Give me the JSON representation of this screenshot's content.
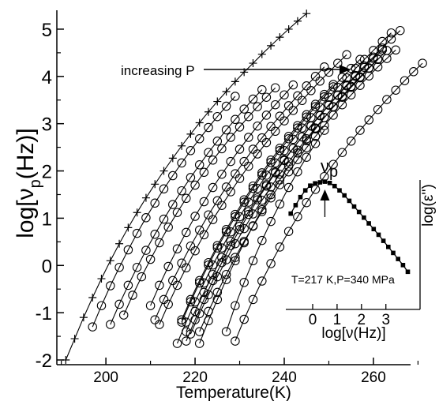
{
  "chart_data": {
    "type": "scatter",
    "title": "",
    "xlabel": "Temperature(K)",
    "ylabel": "log[ν",
    "ylabel_sub": "p",
    "ylabel_end": "(Hz)]",
    "xlim": [
      189,
      274
    ],
    "ylim": [
      -2.1,
      5.4
    ],
    "xticks": [
      "200",
      "220",
      "240",
      "260"
    ],
    "xtick_values": [
      200,
      220,
      240,
      260
    ],
    "yticks": [
      "-2",
      "-1",
      "0",
      "1",
      "2",
      "3",
      "4",
      "5"
    ],
    "ytick_values": [
      -2,
      -1,
      0,
      1,
      2,
      3,
      4,
      5
    ],
    "annotation": "increasing P",
    "grid": false,
    "series": [
      {
        "marker": "plus",
        "x": [
          191,
          193,
          195,
          197,
          199,
          201,
          203,
          205,
          207,
          209,
          211,
          213,
          215,
          217,
          219,
          221,
          223,
          225,
          227,
          229,
          231,
          233,
          235,
          237,
          239,
          241,
          243,
          245
        ],
        "y": [
          -2.0,
          -1.55,
          -1.1,
          -0.68,
          -0.28,
          0.1,
          0.46,
          0.8,
          1.12,
          1.43,
          1.72,
          2.0,
          2.27,
          2.53,
          2.78,
          3.02,
          3.25,
          3.47,
          3.68,
          3.89,
          4.09,
          4.28,
          4.47,
          4.65,
          4.83,
          5.0,
          5.17,
          5.33
        ]
      },
      {
        "marker": "circle",
        "x": [
          197,
          199,
          201,
          203,
          205,
          207,
          209,
          211,
          213,
          215,
          217,
          219,
          221,
          223,
          225,
          227,
          229
        ],
        "y": [
          -1.3,
          -0.85,
          -0.43,
          -0.04,
          0.33,
          0.68,
          1.01,
          1.32,
          1.62,
          1.9,
          2.17,
          2.43,
          2.68,
          2.92,
          3.15,
          3.37,
          3.58
        ]
      },
      {
        "marker": "circle",
        "x": [
          201,
          203,
          205,
          207,
          209,
          211,
          213,
          215,
          217,
          219,
          221,
          223,
          225,
          227,
          229,
          231,
          233,
          235
        ],
        "y": [
          -1.25,
          -0.82,
          -0.42,
          -0.04,
          0.32,
          0.66,
          0.98,
          1.29,
          1.58,
          1.86,
          2.13,
          2.39,
          2.63,
          2.87,
          3.09,
          3.31,
          3.52,
          3.72
        ]
      },
      {
        "marker": "circle",
        "x": [
          204,
          206,
          208,
          210,
          212,
          214,
          216,
          218,
          220,
          222,
          224,
          226,
          228,
          230,
          232,
          234,
          236,
          238
        ],
        "y": [
          -1.05,
          -0.63,
          -0.24,
          0.13,
          0.48,
          0.81,
          1.12,
          1.42,
          1.7,
          1.97,
          2.23,
          2.47,
          2.71,
          2.93,
          3.15,
          3.36,
          3.56,
          3.76
        ]
      },
      {
        "marker": "circle",
        "x": [
          210,
          212,
          214,
          216,
          218,
          220,
          222,
          224,
          226,
          228,
          230,
          232,
          234,
          236,
          238,
          240,
          242
        ],
        "y": [
          -0.85,
          -0.42,
          -0.02,
          0.35,
          0.7,
          1.04,
          1.35,
          1.65,
          1.93,
          2.2,
          2.46,
          2.71,
          2.95,
          3.18,
          3.4,
          3.61,
          3.82
        ]
      },
      {
        "marker": "circle",
        "x": [
          211,
          213,
          215,
          217,
          219,
          221,
          223,
          225,
          227,
          229,
          231,
          233,
          235,
          237,
          239,
          241,
          243,
          245,
          247,
          249
        ],
        "y": [
          -1.15,
          -0.72,
          -0.32,
          0.05,
          0.41,
          0.75,
          1.07,
          1.37,
          1.66,
          1.94,
          2.2,
          2.46,
          2.7,
          2.94,
          3.16,
          3.38,
          3.59,
          3.8,
          4.0,
          4.2
        ]
      },
      {
        "marker": "circle",
        "x": [
          212,
          214,
          216,
          218,
          220,
          222,
          224,
          226,
          228,
          230,
          232,
          234,
          236,
          238,
          240,
          242,
          244,
          246,
          248,
          250,
          252,
          254
        ],
        "y": [
          -1.25,
          -0.82,
          -0.42,
          -0.05,
          0.31,
          0.65,
          0.97,
          1.27,
          1.56,
          1.84,
          2.1,
          2.36,
          2.6,
          2.84,
          3.06,
          3.28,
          3.49,
          3.7,
          3.9,
          4.09,
          4.28,
          4.46
        ]
      },
      {
        "marker": "circle",
        "x": [
          217,
          219,
          221,
          223,
          225,
          227,
          229,
          231,
          233,
          235,
          237,
          239,
          241,
          243,
          245,
          247,
          249,
          251
        ],
        "y": [
          -1.15,
          -0.72,
          -0.32,
          0.06,
          0.42,
          0.76,
          1.08,
          1.39,
          1.68,
          1.96,
          2.23,
          2.48,
          2.73,
          2.96,
          3.19,
          3.41,
          3.62,
          3.83
        ]
      },
      {
        "marker": "circle",
        "x": [
          217,
          219,
          221,
          223,
          225,
          227,
          229,
          231,
          233,
          235,
          237,
          239,
          241,
          243,
          245,
          247,
          249,
          251,
          253,
          255,
          257
        ],
        "y": [
          -1.2,
          -0.77,
          -0.37,
          0.01,
          0.37,
          0.71,
          1.03,
          1.34,
          1.63,
          1.91,
          2.18,
          2.43,
          2.68,
          2.91,
          3.14,
          3.36,
          3.57,
          3.78,
          3.98,
          4.17,
          4.36
        ]
      },
      {
        "marker": "circle",
        "x": [
          218,
          220,
          222,
          224,
          226,
          228,
          230,
          232,
          234,
          236,
          238,
          240,
          242,
          244,
          246,
          248,
          250,
          252,
          254,
          256,
          258,
          260,
          262
        ],
        "y": [
          -1.4,
          -0.97,
          -0.57,
          -0.19,
          0.17,
          0.51,
          0.83,
          1.14,
          1.43,
          1.71,
          1.98,
          2.24,
          2.48,
          2.72,
          2.95,
          3.17,
          3.39,
          3.6,
          3.8,
          4.0,
          4.19,
          4.38,
          4.56
        ]
      },
      {
        "marker": "circle",
        "x": [
          219,
          221,
          223,
          225,
          227,
          229,
          231,
          233,
          235,
          237,
          239,
          241,
          243,
          245,
          247,
          249,
          251,
          253,
          255,
          257,
          259,
          261,
          263
        ],
        "y": [
          -1.45,
          -1.02,
          -0.62,
          -0.24,
          0.12,
          0.46,
          0.78,
          1.09,
          1.38,
          1.66,
          1.93,
          2.19,
          2.44,
          2.68,
          2.91,
          3.13,
          3.35,
          3.56,
          3.77,
          3.97,
          4.17,
          4.36,
          4.55
        ]
      },
      {
        "marker": "circle",
        "x": [
          221,
          223,
          225,
          227,
          229,
          231,
          233,
          235,
          237,
          239,
          241,
          243,
          245,
          247,
          249,
          251,
          253,
          255,
          257,
          259,
          261,
          263,
          265
        ],
        "y": [
          -1.4,
          -0.97,
          -0.57,
          -0.19,
          0.17,
          0.51,
          0.83,
          1.14,
          1.43,
          1.71,
          1.98,
          2.24,
          2.49,
          2.73,
          2.96,
          3.18,
          3.4,
          3.61,
          3.81,
          4.01,
          4.2,
          4.38,
          4.56
        ]
      },
      {
        "marker": "circle",
        "x": [
          216,
          218,
          220,
          222,
          224,
          226,
          228,
          230,
          232,
          234,
          236,
          238,
          240,
          242,
          244,
          246,
          248,
          250,
          252,
          254,
          256,
          258,
          260,
          262,
          264
        ],
        "y": [
          -1.65,
          -1.2,
          -0.77,
          -0.37,
          0.01,
          0.37,
          0.71,
          1.03,
          1.34,
          1.63,
          1.91,
          2.17,
          2.43,
          2.67,
          2.91,
          3.13,
          3.35,
          3.56,
          3.77,
          3.97,
          4.17,
          4.36,
          4.55,
          4.74,
          4.92
        ]
      },
      {
        "marker": "circle",
        "x": [
          218,
          220,
          222,
          224,
          226,
          228,
          230,
          232,
          234,
          236,
          238,
          240,
          242,
          244,
          246,
          248,
          250,
          252,
          254,
          256,
          258,
          260,
          262,
          264,
          266
        ],
        "y": [
          -1.6,
          -1.15,
          -0.72,
          -0.32,
          0.06,
          0.42,
          0.76,
          1.08,
          1.39,
          1.68,
          1.96,
          2.22,
          2.48,
          2.72,
          2.96,
          3.18,
          3.4,
          3.61,
          3.82,
          4.02,
          4.22,
          4.41,
          4.6,
          4.79,
          4.97
        ]
      },
      {
        "marker": "circle",
        "x": [
          221,
          223,
          225,
          227,
          229,
          231,
          233,
          235,
          237,
          239,
          241,
          243,
          245,
          247,
          249,
          251,
          253,
          255,
          257,
          259,
          261
        ],
        "y": [
          -1.65,
          -1.17,
          -0.72,
          -0.3,
          0.1,
          0.48,
          0.84,
          1.18,
          1.5,
          1.81,
          2.1,
          2.38,
          2.64,
          2.89,
          3.13,
          3.36,
          3.58,
          3.79,
          3.99,
          4.18,
          4.37
        ]
      },
      {
        "marker": "circle",
        "x": [
          227,
          229,
          231,
          233,
          235,
          237,
          239,
          241,
          243,
          245,
          247,
          249
        ],
        "y": [
          -1.4,
          -0.85,
          -0.36,
          0.1,
          0.53,
          0.93,
          1.3,
          1.65,
          1.98,
          2.29,
          2.58,
          2.86
        ]
      },
      {
        "marker": "circle",
        "x": [
          229,
          231,
          233,
          235,
          237,
          239,
          241,
          243,
          245,
          247,
          249,
          251,
          253,
          255,
          257,
          259,
          261,
          263,
          265,
          267,
          269,
          271
        ],
        "y": [
          -1.6,
          -1.14,
          -0.72,
          -0.33,
          0.04,
          0.39,
          0.72,
          1.03,
          1.33,
          1.61,
          1.88,
          2.14,
          2.39,
          2.63,
          2.86,
          3.08,
          3.3,
          3.51,
          3.71,
          3.91,
          4.1,
          4.28
        ]
      }
    ],
    "inset": {
      "type": "scatter",
      "xlabel": "log[ν(Hz)]",
      "ylabel": "log(ε'')",
      "xticks": [
        "0",
        "1",
        "2",
        "3"
      ],
      "xtick_values": [
        0,
        1,
        2,
        3
      ],
      "xlim": [
        -1.1,
        4.4
      ],
      "ylim": [
        -2.6,
        1.25
      ],
      "peak_label": "ν",
      "peak_label_sub": "p",
      "peak_x": 0.5,
      "note": "T=217 K,P=340 MPa",
      "x": [
        -0.9,
        -0.7,
        -0.5,
        -0.3,
        -0.1,
        0.1,
        0.3,
        0.5,
        0.7,
        0.9,
        1.1,
        1.3,
        1.5,
        1.7,
        1.9,
        2.1,
        2.3,
        2.5,
        2.7,
        2.9,
        3.1,
        3.3,
        3.5,
        3.7,
        3.9
      ],
      "y": [
        0.25,
        0.5,
        0.74,
        0.94,
        1.08,
        1.15,
        1.18,
        1.2,
        1.16,
        1.07,
        0.94,
        0.79,
        0.63,
        0.46,
        0.3,
        0.13,
        -0.04,
        -0.21,
        -0.38,
        -0.56,
        -0.74,
        -0.92,
        -1.1,
        -1.28,
        -1.48
      ]
    }
  }
}
